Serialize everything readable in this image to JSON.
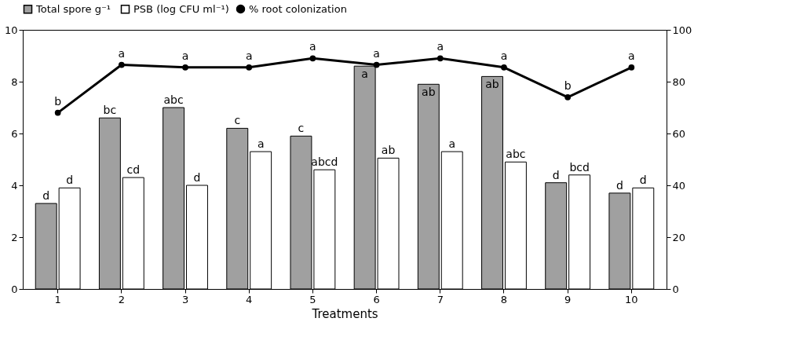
{
  "chart_data": {
    "type": "bar",
    "xlabel": "Treatments",
    "categories": [
      "1",
      "2",
      "3",
      "4",
      "5",
      "6",
      "7",
      "8",
      "9",
      "10"
    ],
    "series": [
      {
        "name": "Total spore g⁻¹",
        "color": "#a0a0a0",
        "values": [
          3.3,
          6.6,
          7.0,
          6.2,
          5.9,
          8.6,
          7.9,
          8.2,
          4.1,
          3.7
        ],
        "value_labels": [
          "d",
          "bc",
          "abc",
          "c",
          "c",
          "a",
          "ab",
          "ab",
          "d",
          "d"
        ]
      },
      {
        "name": "PSB (log CFU ml⁻¹)",
        "color": "#ffffff",
        "values": [
          3.9,
          4.3,
          4.0,
          5.3,
          4.6,
          5.05,
          5.3,
          4.9,
          4.4,
          3.9
        ],
        "value_labels": [
          "d",
          "cd",
          "d",
          "a",
          "abcd",
          "ab",
          "a",
          "abc",
          "bcd",
          "d"
        ]
      },
      {
        "name": "% root colonization",
        "type": "line",
        "axis": "y2",
        "color": "#000000",
        "marker": "circle",
        "line_style": "solid",
        "values": [
          68,
          86.5,
          85.5,
          85.5,
          89,
          86.5,
          89,
          85.5,
          74,
          85.5
        ],
        "value_labels": [
          "b",
          "a",
          "a",
          "a",
          "a",
          "a",
          "a",
          "a",
          "b",
          "a"
        ]
      }
    ],
    "ylim": [
      0,
      10
    ],
    "yticks": [
      0,
      2,
      4,
      6,
      8,
      10
    ],
    "y2lim": [
      0,
      100
    ],
    "y2ticks": [
      0,
      20,
      40,
      60,
      80,
      100
    ],
    "grid": false,
    "legend": "top"
  }
}
